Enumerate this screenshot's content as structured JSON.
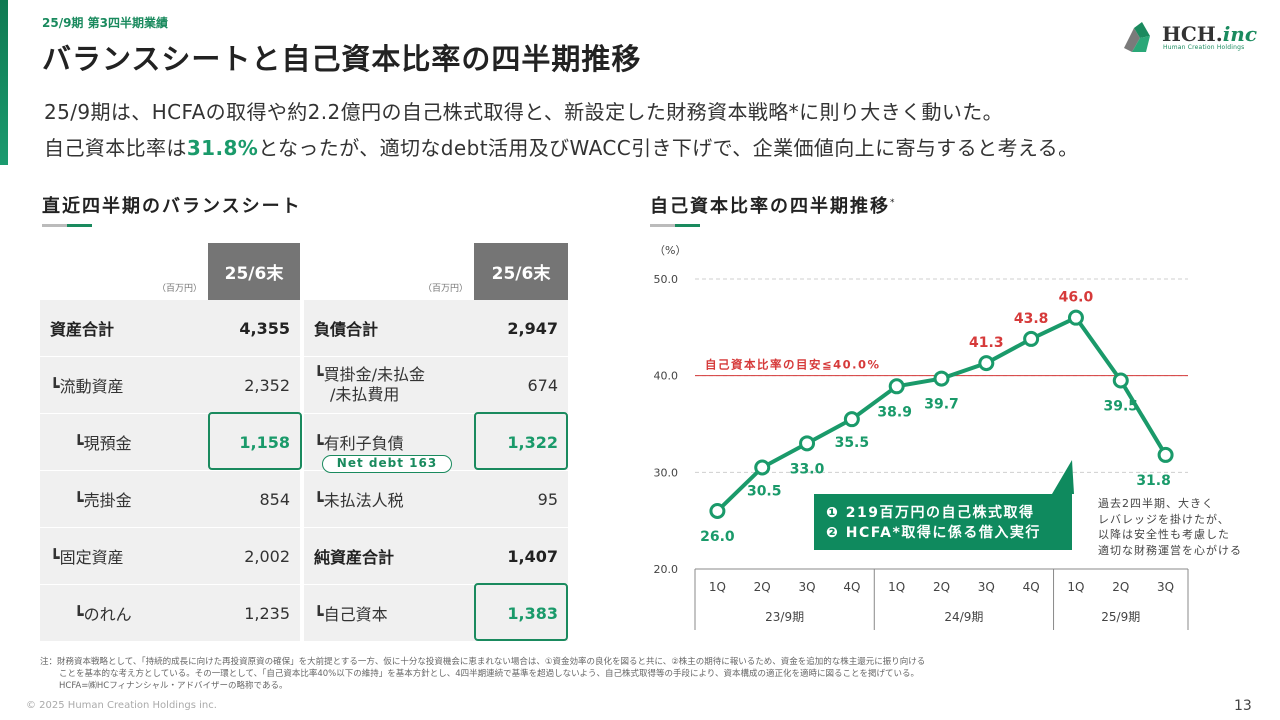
{
  "header": {
    "section_label": "25/9期 第3四半期業績",
    "title": "バランスシートと自己資本比率の四半期推移",
    "logo_text": "HCH.",
    "logo_suffix": "inc",
    "logo_sub": "Human Creation Holdings"
  },
  "headline": {
    "line1": "25/9期は、HCFAの取得や約2.2億円の自己株式取得と、新設定した財務資本戦略*に則り大きく動いた。",
    "line2_pre": "自己資本比率は",
    "line2_highlight": "31.8%",
    "line2_post": "となったが、適切なdebt活用及びWACC引き下げで、企業価値向上に寄与すると考える。"
  },
  "balance_sheet": {
    "title": "直近四半期のバランスシート",
    "unit": "（百万円）",
    "period": "25/6末",
    "assets": [
      {
        "label": "資産合計",
        "value": "4,355",
        "bold": true
      },
      {
        "label": "┗流動資産",
        "value": "2,352"
      },
      {
        "label": "┗現預金",
        "value": "1,158",
        "highlight": true
      },
      {
        "label": "┗売掛金",
        "value": "854"
      },
      {
        "label": "┗固定資産",
        "value": "2,002"
      },
      {
        "label": "┗のれん",
        "value": "1,235"
      }
    ],
    "liabilities": [
      {
        "label": "負債合計",
        "value": "2,947",
        "bold": true
      },
      {
        "label": "┗買掛金/未払金",
        "label2": "/未払費用",
        "value": "674"
      },
      {
        "label": "┗有利子負債",
        "value": "1,322",
        "highlight": true
      },
      {
        "label": "┗未払法人税",
        "value": "95"
      },
      {
        "label": "純資産合計",
        "value": "1,407",
        "bold": true
      },
      {
        "label": "┗自己資本",
        "value": "1,383",
        "highlight": true
      }
    ],
    "net_debt_label": "Net debt 163"
  },
  "chart_data": {
    "type": "line",
    "title": "自己資本比率の四半期推移",
    "title_mark": "*",
    "ylabel": "（%）",
    "ylim": [
      20,
      50
    ],
    "yticks": [
      "50.0",
      "40.0",
      "30.0",
      "20.0"
    ],
    "categories": [
      "1Q",
      "2Q",
      "3Q",
      "4Q",
      "1Q",
      "2Q",
      "3Q",
      "4Q",
      "1Q",
      "2Q",
      "3Q"
    ],
    "groups": [
      {
        "label": "23/9期",
        "count": 4
      },
      {
        "label": "24/9期",
        "count": 4
      },
      {
        "label": "25/9期",
        "count": 3
      }
    ],
    "series": [
      {
        "values": [
          26.0,
          30.5,
          33.0,
          35.5,
          38.9,
          39.7,
          41.3,
          43.8,
          46.0,
          39.5,
          31.8
        ],
        "labels": [
          "26.0",
          "30.5",
          "33.0",
          "35.5",
          "38.9",
          "39.7",
          "41.3",
          "43.8",
          "46.0",
          "39.5",
          "31.8"
        ],
        "color": "#1a9a6a"
      }
    ],
    "reference_line": {
      "value": 40.0,
      "label": "自己資本比率の目安≦40.0%",
      "color": "#d63a3a"
    },
    "label_colors": {
      "normal": "#1a9a6a",
      "above_target": "#d63a3a"
    },
    "callout": {
      "line1": "❶ 219百万円の自己株式取得",
      "line2": "❷ HCFA*取得に係る借入実行",
      "color": "#0f8a5e"
    },
    "side_note": [
      "過去2四半期、大きく",
      "レバレッジを掛けたが、",
      "以降は安全性も考慮した",
      "適切な財務運営を心がける"
    ]
  },
  "footnote": {
    "line1": "注：財務資本戦略として、「持続的成長に向けた再投資原資の確保」を大前提とする一方、仮に十分な投資機会に恵まれない場合は、①資金効率の良化を図ると共に、②株主の期待に報いるため、資金を追加的な株主還元に振り向ける",
    "line2": "ことを基本的な考え方としている。その一環として、「自己資本比率40%以下の維持」を基本方針とし、4四半期連続で基準を超過しないよう、自己株式取得等の手段により、資本構成の適正化を適時に図ることを掲げている。",
    "line3": "HCFA=㈱HCフィナンシャル・アドバイザーの略称である。"
  },
  "footer": {
    "copyright": "© 2025 Human Creation Holdings inc.",
    "page": "13"
  }
}
